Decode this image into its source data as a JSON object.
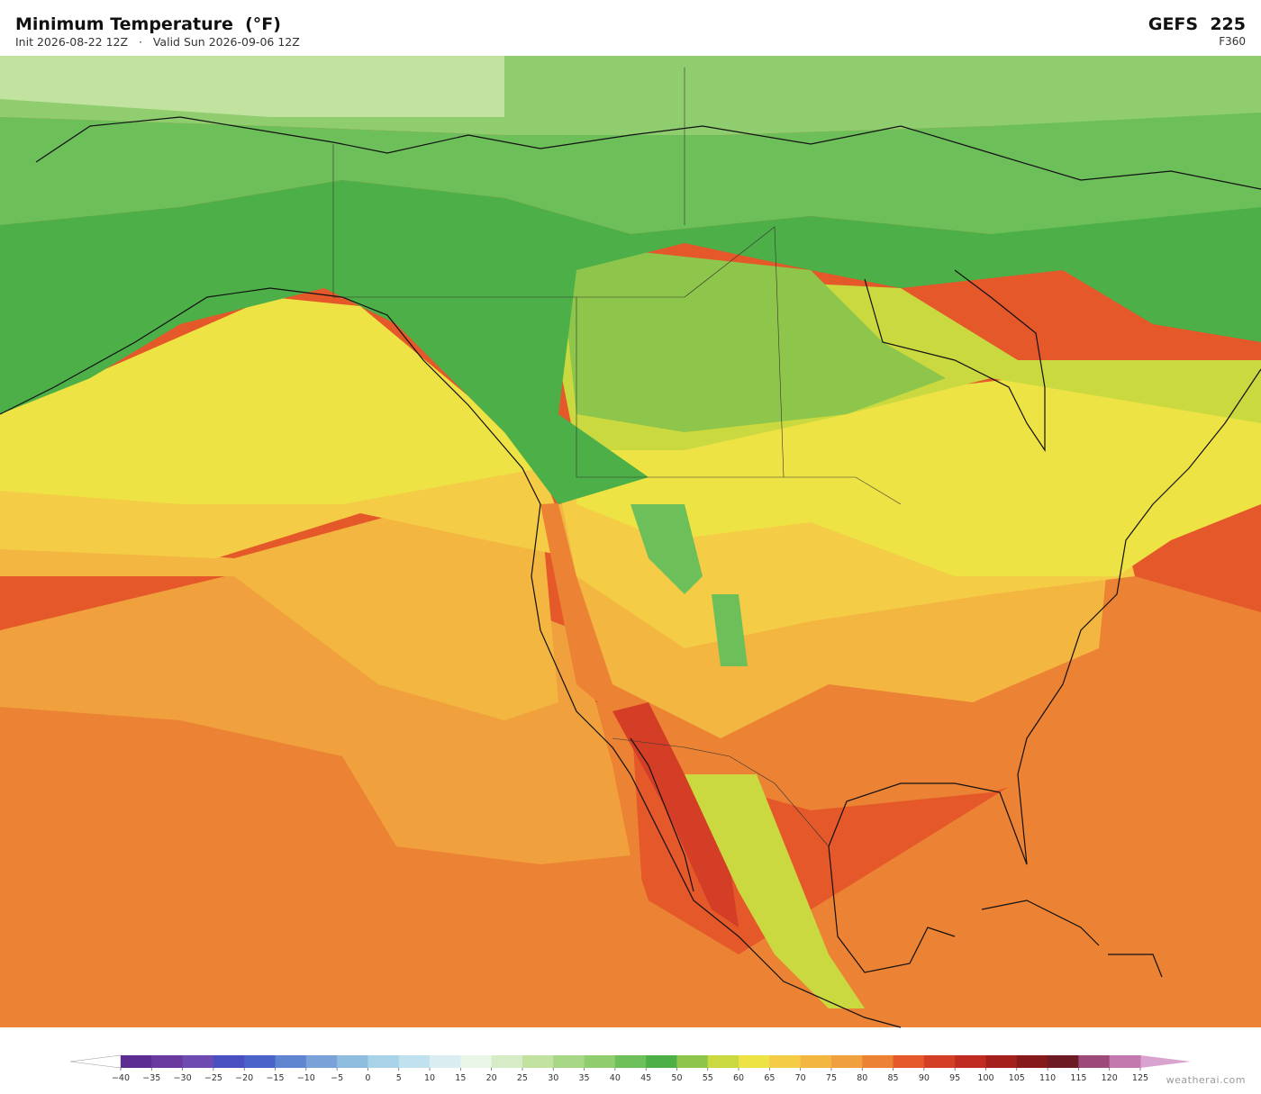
{
  "header": {
    "title": "Minimum Temperature  (°F)",
    "subtitle": "Init 2026-08-22 12Z   ·   Valid Sun 2026-09-06 12Z",
    "model": "GEFS  225",
    "forecast_hour": "F360"
  },
  "colorbar": {
    "ticks": [
      {
        "value": -40,
        "label": "−40"
      },
      {
        "value": -35,
        "label": "−35"
      },
      {
        "value": -30,
        "label": "−30"
      },
      {
        "value": -25,
        "label": "−25"
      },
      {
        "value": -20,
        "label": "−20"
      },
      {
        "value": -15,
        "label": "−15"
      },
      {
        "value": -10,
        "label": "−10"
      },
      {
        "value": -5,
        "label": "−5"
      },
      0,
      5,
      10,
      15,
      20,
      25,
      30,
      35,
      40,
      45,
      50,
      55,
      60,
      65,
      70,
      75,
      80,
      85,
      90,
      95,
      100,
      105,
      110,
      115,
      120,
      125
    ],
    "colors": [
      "#5b2d91",
      "#6a3a9e",
      "#6d4bb0",
      "#4a4fc0",
      "#4a62c9",
      "#6085d0",
      "#7aa2d8",
      "#8ebde0",
      "#a8d2e8",
      "#c0e1ee",
      "#daeef2",
      "#e9f5e6",
      "#d6ecc6",
      "#c2e3a0",
      "#a8d886",
      "#8fcd6e",
      "#6dbf5a",
      "#4caf47",
      "#8dc64a",
      "#c9d93f",
      "#eee344",
      "#f4cc45",
      "#f3b641",
      "#f0a03c",
      "#ec8233",
      "#e4582a",
      "#d43e26",
      "#c02c22",
      "#a3201c",
      "#861a1b",
      "#6e1a24",
      "#9c4a7a",
      "#c379ad"
    ],
    "under_color": "#ffffff",
    "over_color": "#d9a3d0"
  },
  "watermark": "weatherai.com"
}
